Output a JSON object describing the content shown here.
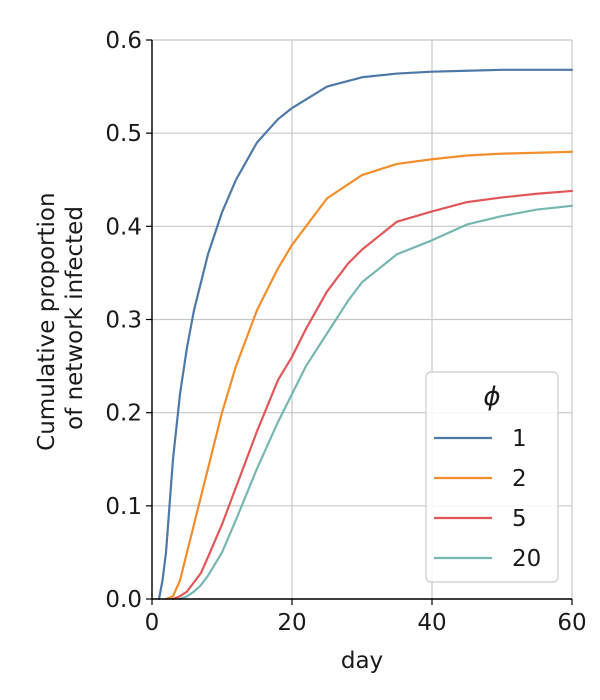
{
  "chart_data": {
    "type": "line",
    "xlabel": "day",
    "ylabel_lines": [
      "Cumulative proportion",
      "of network infected"
    ],
    "xlim": [
      0,
      60
    ],
    "ylim": [
      0,
      0.6
    ],
    "x_ticks": [
      0,
      20,
      40,
      60
    ],
    "x_tick_labels": [
      "0",
      "20",
      "40",
      "60"
    ],
    "y_ticks": [
      0,
      0.1,
      0.2,
      0.3,
      0.4,
      0.5,
      0.6
    ],
    "y_tick_labels": [
      "0.0",
      "0.1",
      "0.2",
      "0.3",
      "0.4",
      "0.5",
      "0.6"
    ],
    "grid": true,
    "legend": {
      "title": "ϕ",
      "placement": "lower-right"
    },
    "series": [
      {
        "name": "1",
        "color": "#4e79a7",
        "x": [
          1,
          1.5,
          2,
          2.5,
          3,
          4,
          5,
          6,
          8,
          10,
          12,
          15,
          18,
          20,
          25,
          30,
          35,
          40,
          45,
          50,
          55,
          60
        ],
        "y": [
          0.0,
          0.02,
          0.05,
          0.1,
          0.15,
          0.22,
          0.27,
          0.31,
          0.37,
          0.415,
          0.45,
          0.49,
          0.515,
          0.527,
          0.55,
          0.56,
          0.564,
          0.566,
          0.567,
          0.568,
          0.568,
          0.568
        ]
      },
      {
        "name": "2",
        "color": "#f28e2b",
        "x": [
          2,
          3,
          4,
          5,
          6,
          8,
          10,
          12,
          15,
          18,
          20,
          25,
          30,
          35,
          40,
          45,
          50,
          55,
          60
        ],
        "y": [
          0.0,
          0.003,
          0.02,
          0.05,
          0.08,
          0.14,
          0.2,
          0.25,
          0.31,
          0.355,
          0.38,
          0.43,
          0.455,
          0.467,
          0.472,
          0.476,
          0.478,
          0.479,
          0.48
        ]
      },
      {
        "name": "5",
        "color": "#e15759",
        "x": [
          3,
          4,
          5,
          6,
          7,
          8,
          10,
          12,
          15,
          18,
          20,
          22,
          25,
          28,
          30,
          35,
          40,
          45,
          50,
          55,
          60
        ],
        "y": [
          0.0,
          0.003,
          0.008,
          0.018,
          0.028,
          0.045,
          0.08,
          0.12,
          0.18,
          0.235,
          0.26,
          0.29,
          0.33,
          0.36,
          0.375,
          0.405,
          0.416,
          0.426,
          0.431,
          0.435,
          0.438
        ]
      },
      {
        "name": "20",
        "color": "#76b7b2",
        "x": [
          4,
          5,
          6,
          7,
          8,
          10,
          12,
          15,
          18,
          20,
          22,
          25,
          28,
          30,
          35,
          40,
          45,
          50,
          55,
          60
        ],
        "y": [
          0.0,
          0.003,
          0.008,
          0.015,
          0.025,
          0.05,
          0.085,
          0.14,
          0.19,
          0.22,
          0.25,
          0.285,
          0.32,
          0.34,
          0.37,
          0.385,
          0.402,
          0.411,
          0.418,
          0.422
        ]
      }
    ]
  }
}
